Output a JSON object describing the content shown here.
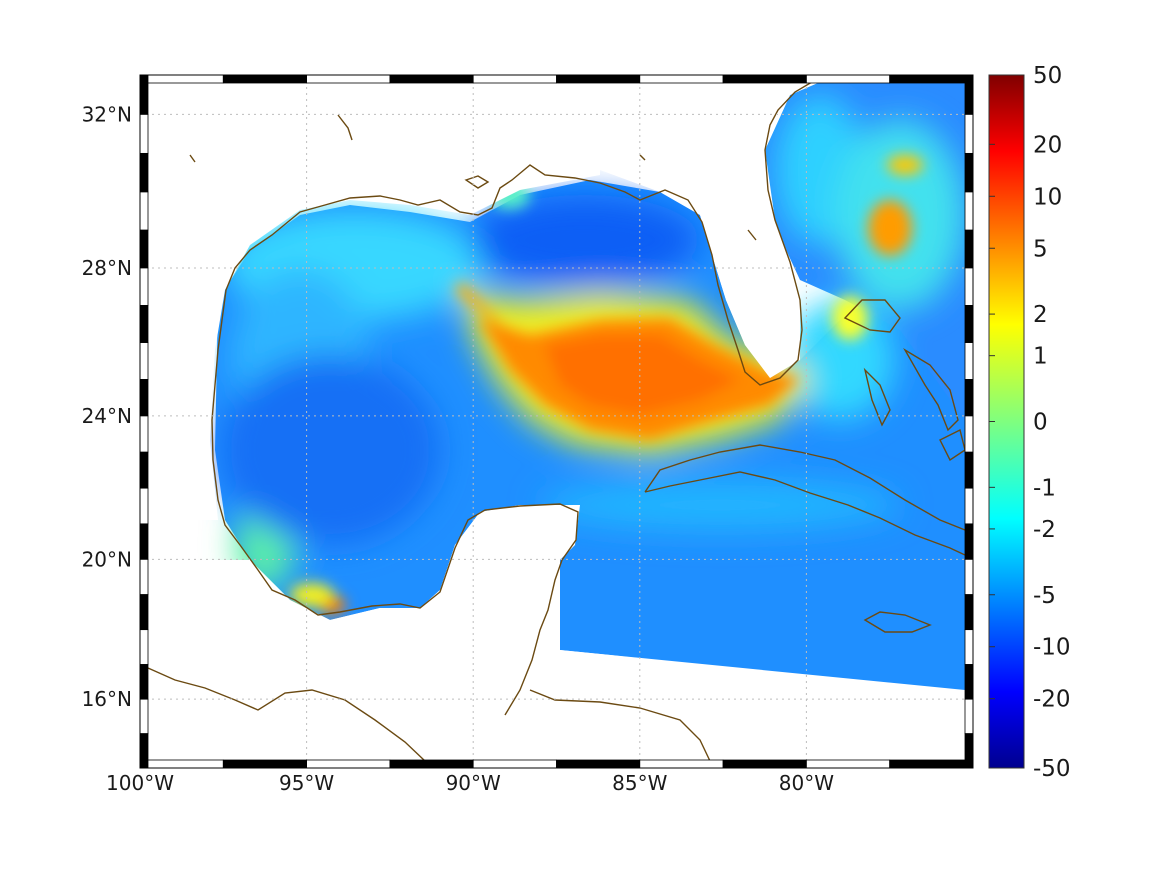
{
  "map": {
    "projection": "mercator",
    "lon_range_deg": [
      -100,
      -75
    ],
    "lat_range_deg": [
      14,
      33
    ],
    "field_colormap": "jet",
    "coastline_color": "#6b4a12",
    "grid": "dotted",
    "frame_style": "alternating black and white"
  },
  "lon_ticks": [
    {
      "value": -100,
      "label": "100°W"
    },
    {
      "value": -95,
      "label": "95°W"
    },
    {
      "value": -90,
      "label": "90°W"
    },
    {
      "value": -85,
      "label": "85°W"
    },
    {
      "value": -80,
      "label": "80°W"
    }
  ],
  "lat_ticks": [
    {
      "value": 32,
      "label": "32°N"
    },
    {
      "value": 28,
      "label": "28°N"
    },
    {
      "value": 24,
      "label": "24°N"
    },
    {
      "value": 20,
      "label": "20°N"
    },
    {
      "value": 16,
      "label": "16°N"
    }
  ],
  "colorbar": {
    "colormap": "jet",
    "range": [
      -50,
      50
    ],
    "labels": [
      "50",
      "20",
      "10",
      "5",
      "2",
      "1",
      "0",
      "-1",
      "-2",
      "-5",
      "-10",
      "-20",
      "-50"
    ]
  },
  "features": [
    {
      "name": "Loop Current warm anomaly",
      "level": "orange, about +5"
    },
    {
      "name": "Northeastern Gulf low",
      "level": "blue, about -10"
    },
    {
      "name": "Bay of Campeche warm spot",
      "level": "orange, about +5"
    },
    {
      "name": "Atlantic warm eddy east of Florida",
      "level": "orange, about +5"
    }
  ]
}
